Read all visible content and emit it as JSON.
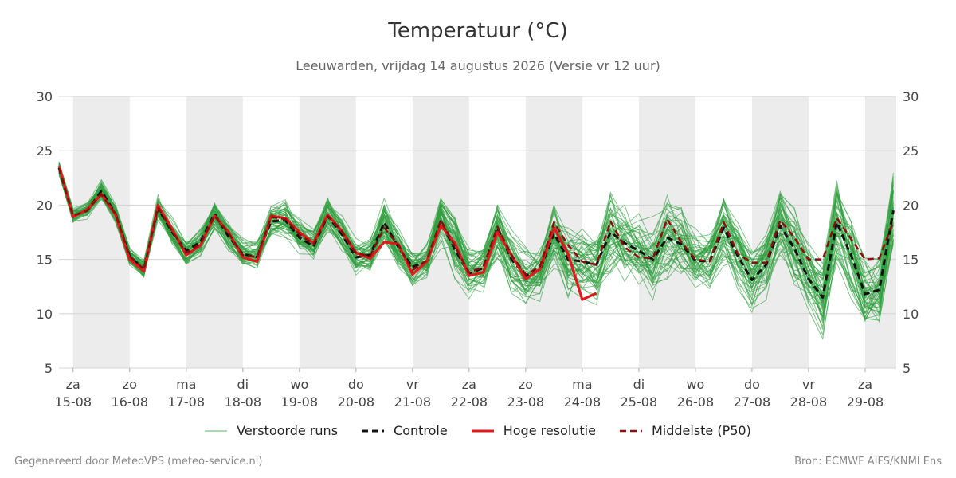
{
  "title": "Temperatuur (°C)",
  "subtitle": "Leeuwarden, vrijdag 14 augustus 2026 (Versie vr 12 uur)",
  "footer": {
    "generated": "Gegenereerd door MeteoVPS (meteo-service.nl)",
    "source": "Bron: ECMWF AIFS/KNMI Ens"
  },
  "chart_data": {
    "type": "line",
    "ylim": [
      5,
      30
    ],
    "yticks": [
      5,
      10,
      15,
      20,
      25,
      30
    ],
    "grid": true,
    "legend_position": "bottom",
    "x_range_days": [
      -0.25,
      14.55
    ],
    "x_labels": [
      {
        "day": "za",
        "date": "15-08"
      },
      {
        "day": "zo",
        "date": "16-08"
      },
      {
        "day": "ma",
        "date": "17-08"
      },
      {
        "day": "di",
        "date": "18-08"
      },
      {
        "day": "wo",
        "date": "19-08"
      },
      {
        "day": "do",
        "date": "20-08"
      },
      {
        "day": "vr",
        "date": "21-08"
      },
      {
        "day": "za",
        "date": "22-08"
      },
      {
        "day": "zo",
        "date": "23-08"
      },
      {
        "day": "ma",
        "date": "24-08"
      },
      {
        "day": "di",
        "date": "25-08"
      },
      {
        "day": "wo",
        "date": "26-08"
      },
      {
        "day": "do",
        "date": "27-08"
      },
      {
        "day": "vr",
        "date": "28-08"
      },
      {
        "day": "za",
        "date": "29-08"
      }
    ],
    "shaded_days": [
      0,
      2,
      4,
      6,
      8,
      10,
      12,
      14
    ],
    "times_days": [
      -0.25,
      0,
      0.25,
      0.5,
      0.75,
      1,
      1.25,
      1.5,
      1.75,
      2,
      2.25,
      2.5,
      2.75,
      3,
      3.25,
      3.5,
      3.75,
      4,
      4.25,
      4.5,
      4.75,
      5,
      5.25,
      5.5,
      5.75,
      6,
      6.25,
      6.5,
      6.75,
      7,
      7.25,
      7.5,
      7.75,
      8,
      8.25,
      8.5,
      8.75,
      9,
      9.25,
      9.5,
      9.75,
      10,
      10.25,
      10.5,
      10.75,
      11,
      11.25,
      11.5,
      11.75,
      12,
      12.25,
      12.5,
      12.75,
      13,
      13.25,
      13.5,
      13.75,
      14,
      14.25,
      14.5
    ],
    "series": [
      {
        "name": "Hoge resolutie",
        "color": "#e0191b",
        "style": "solid",
        "values": [
          23.6,
          18.9,
          19.6,
          21.0,
          19.1,
          15.0,
          13.9,
          20.0,
          17.8,
          15.4,
          16.3,
          19.0,
          17.5,
          15.2,
          14.8,
          19.0,
          18.8,
          17.5,
          16.5,
          19.1,
          17.6,
          15.6,
          15.1,
          16.6,
          16.4,
          13.6,
          14.8,
          18.1,
          16.5,
          13.5,
          13.8,
          17.5,
          15.4,
          13.2,
          14.1,
          17.9,
          15.5,
          11.3,
          11.9,
          null,
          null,
          null,
          null,
          null,
          null,
          null,
          null,
          null,
          null,
          null,
          null,
          null,
          null,
          null,
          null,
          null,
          null,
          null,
          null,
          null
        ]
      },
      {
        "name": "Controle",
        "color": "#111111",
        "style": "dashed",
        "values": [
          23.4,
          19.0,
          19.5,
          21.3,
          19.2,
          15.3,
          14.1,
          19.7,
          17.5,
          15.8,
          16.6,
          19.2,
          17.1,
          15.5,
          15.2,
          18.5,
          18.6,
          17.0,
          16.2,
          19.0,
          17.3,
          15.2,
          15.4,
          18.4,
          16.1,
          14.3,
          14.8,
          18.5,
          15.9,
          13.7,
          14.2,
          17.9,
          15.0,
          13.5,
          14.0,
          17.4,
          15.0,
          14.8,
          14.5,
          17.5,
          16.5,
          15.8,
          15.0,
          17.0,
          16.4,
          14.9,
          14.8,
          17.9,
          15.3,
          13.1,
          14.5,
          18.1,
          16.0,
          13.2,
          11.5,
          18.4,
          15.4,
          11.8,
          12.2,
          19.5
        ]
      },
      {
        "name": "Middelste (P50)",
        "color": "#8b0d0d",
        "style": "dashed",
        "values": [
          23.4,
          19.0,
          19.5,
          21.0,
          19.2,
          15.3,
          14.1,
          19.8,
          17.6,
          15.6,
          16.4,
          19.0,
          17.4,
          15.4,
          15.2,
          18.9,
          18.7,
          17.3,
          16.4,
          19.0,
          17.6,
          15.6,
          15.3,
          17.9,
          16.3,
          14.0,
          14.9,
          18.6,
          16.2,
          13.8,
          14.3,
          18.0,
          15.4,
          13.6,
          14.3,
          18.4,
          16.3,
          14.8,
          14.5,
          18.5,
          16.1,
          15.2,
          15.1,
          18.7,
          16.6,
          15.0,
          14.8,
          18.4,
          15.5,
          14.7,
          14.7,
          18.6,
          17.0,
          15.0,
          15.0,
          18.8,
          16.9,
          15.0,
          15.1,
          18.5
        ]
      }
    ],
    "ensemble_name": "Verstoorde runs",
    "ensemble_color": "#2e9e3e",
    "ensemble_count": 50,
    "ensemble_spread": [
      0.6,
      0.5,
      0.6,
      0.8,
      0.6,
      0.6,
      0.6,
      0.9,
      0.9,
      0.9,
      0.9,
      0.9,
      1.0,
      0.9,
      1.0,
      1.4,
      1.2,
      1.3,
      1.2,
      1.2,
      1.2,
      1.0,
      1.0,
      1.4,
      1.4,
      1.2,
      1.3,
      2.1,
      2.2,
      1.5,
      1.6,
      2.2,
      2.3,
      1.6,
      1.8,
      2.6,
      2.7,
      2.0,
      2.2,
      3.3,
      2.8,
      2.2,
      2.4,
      2.8,
      2.6,
      2.0,
      2.2,
      2.4,
      2.4,
      2.1,
      2.4,
      2.6,
      2.6,
      2.4,
      2.6,
      2.9,
      2.9,
      2.6,
      2.6,
      3.0
    ],
    "legend": [
      "Verstoorde runs",
      "Controle",
      "Hoge resolutie",
      "Middelste (P50)"
    ]
  }
}
